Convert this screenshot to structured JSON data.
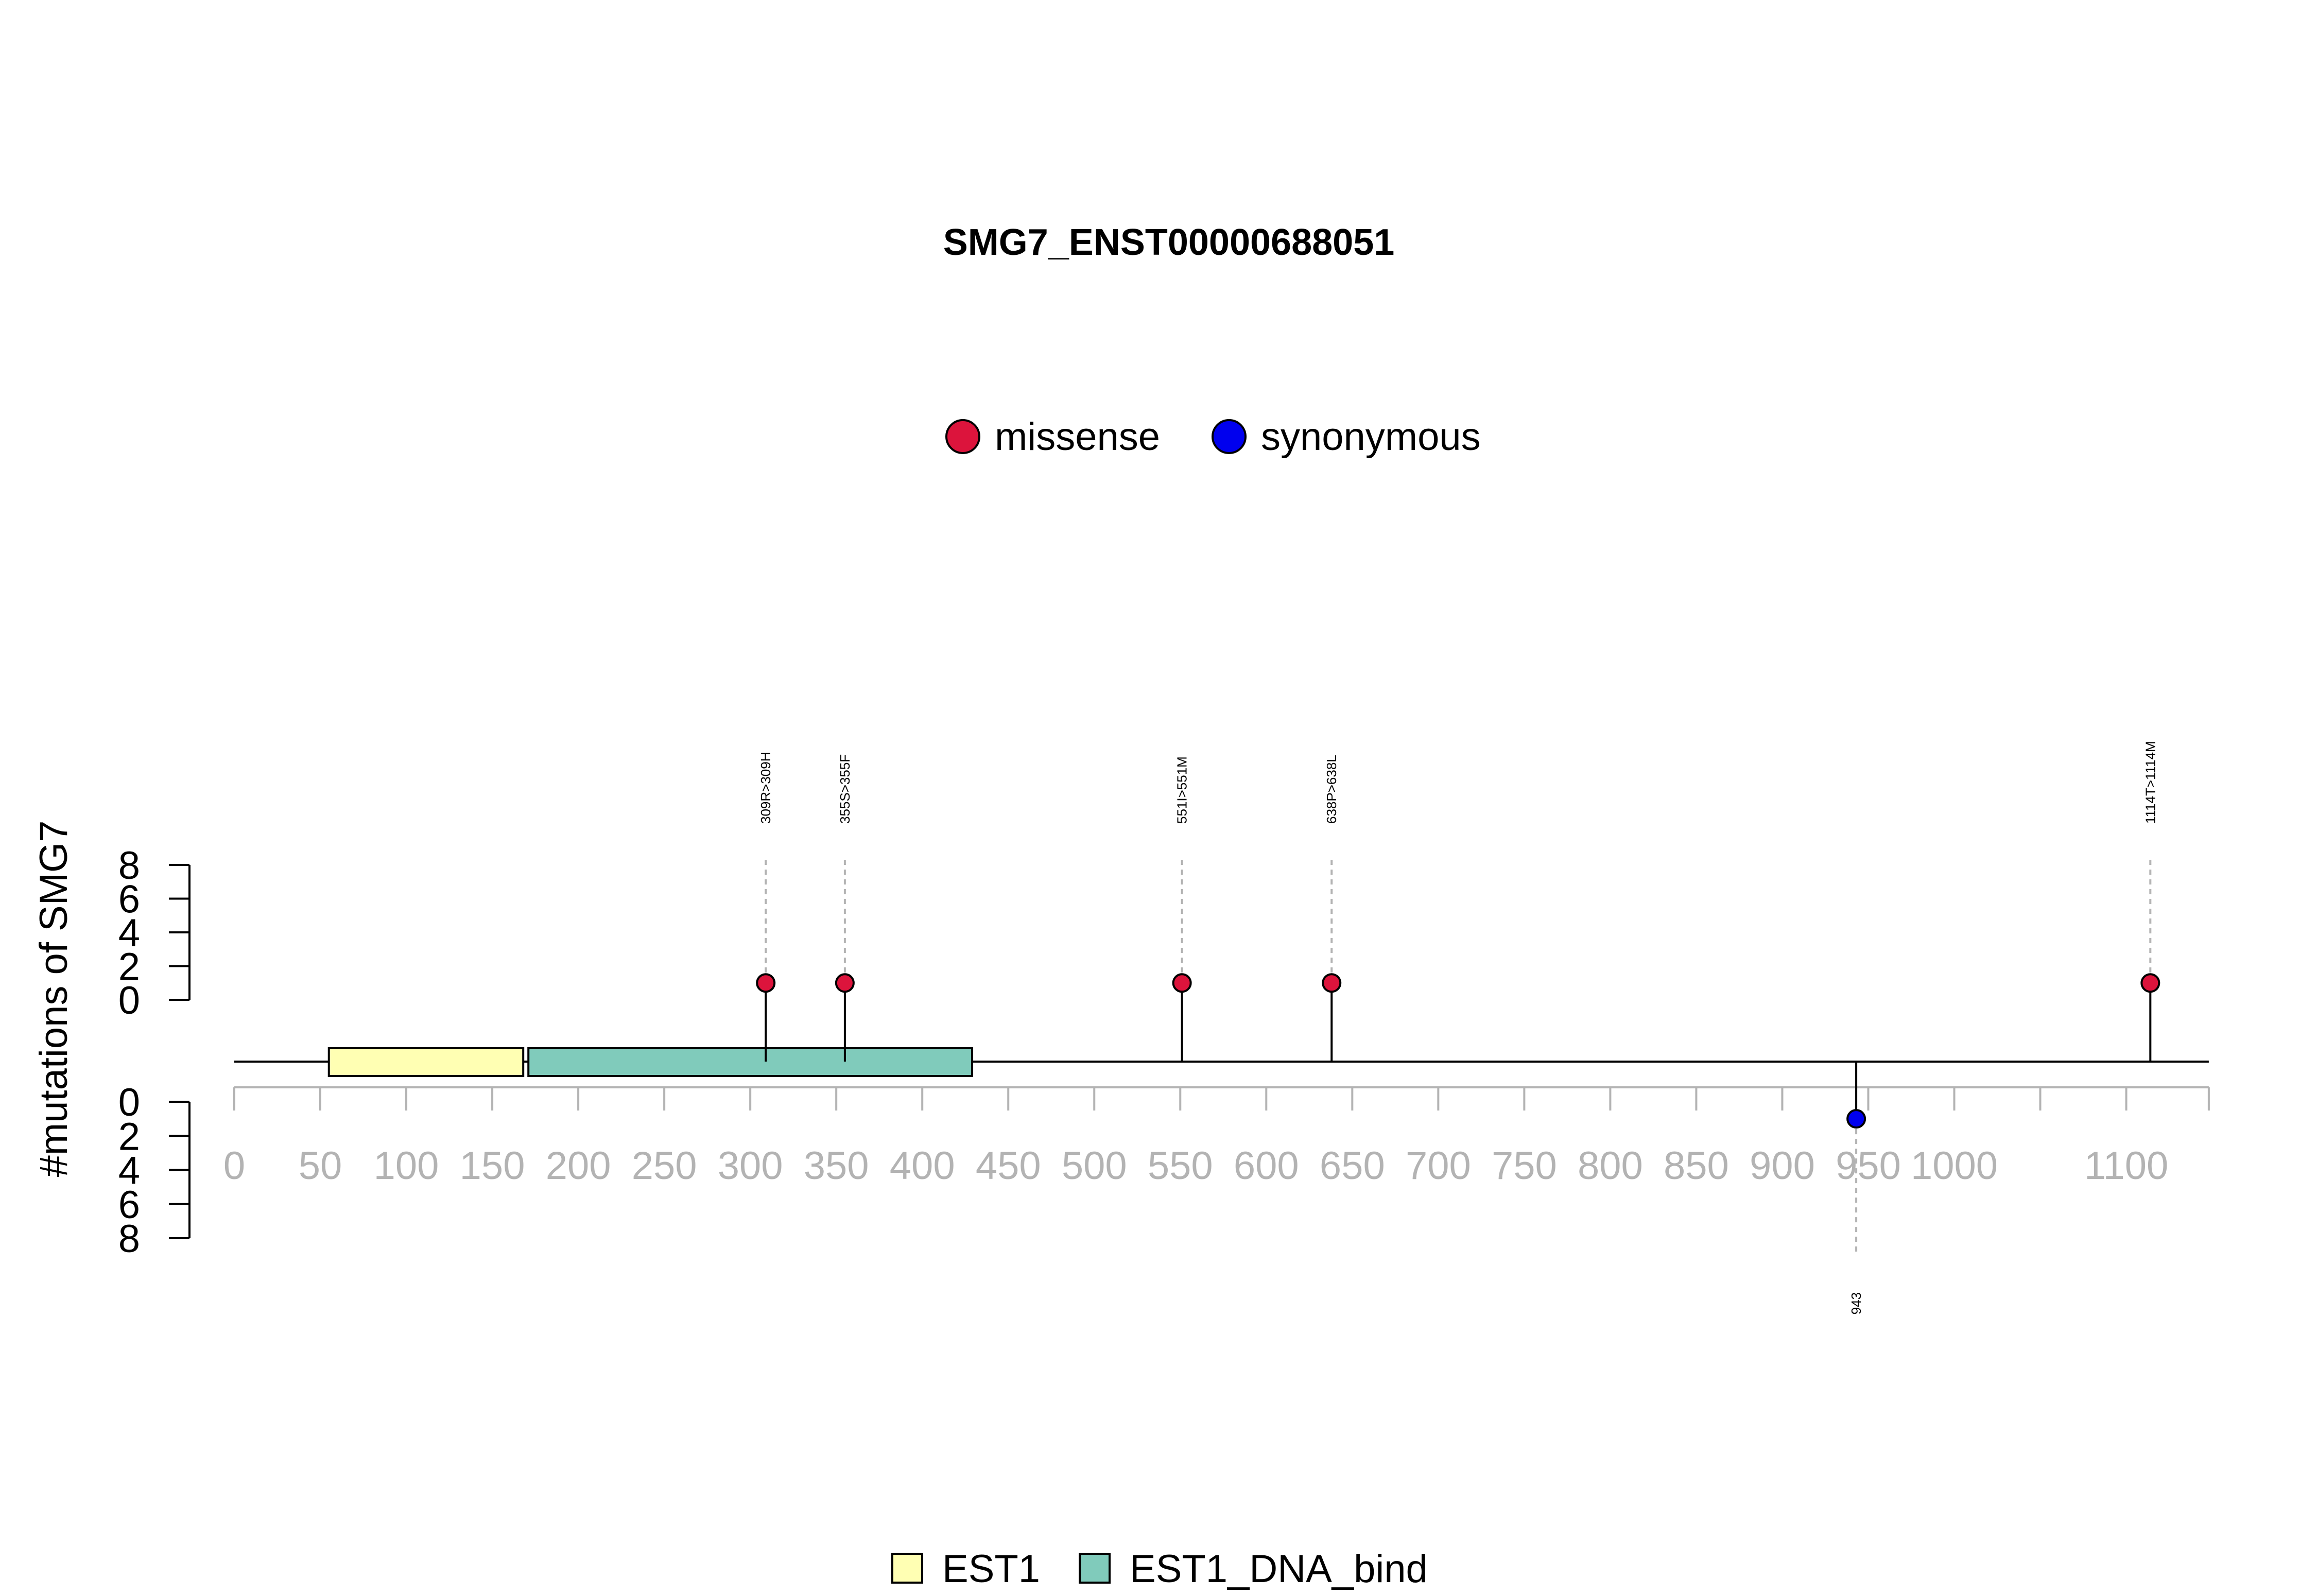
{
  "chart_data": {
    "type": "lollipop",
    "title": "SMG7_ENST00000688051",
    "ylabel": "#mutations of SMG7",
    "protein_length": 1145,
    "x_ticks": [
      0,
      50,
      100,
      150,
      200,
      250,
      300,
      350,
      400,
      450,
      500,
      550,
      600,
      650,
      700,
      750,
      800,
      850,
      900,
      950,
      1000,
      1100
    ],
    "x_tick_labels": [
      "0",
      "50",
      "100",
      "150",
      "200",
      "250",
      "300",
      "350",
      "400",
      "450",
      "500",
      "550",
      "600",
      "650",
      "700",
      "750",
      "800",
      "850",
      "900",
      "950",
      "1000",
      "1100"
    ],
    "x_minor_ticks": [
      1050
    ],
    "y_ticks": [
      0,
      2,
      4,
      6,
      8
    ],
    "y_tick_labels": [
      "0",
      "2",
      "4",
      "6",
      "8"
    ],
    "ylim": [
      0,
      8
    ],
    "mutation_legend": [
      {
        "label": "missense",
        "color": "#dc143c"
      },
      {
        "label": "synonymous",
        "color": "#0000ee"
      }
    ],
    "domains": [
      {
        "name": "EST1",
        "start": 55,
        "end": 168,
        "color": "#ffffb3"
      },
      {
        "name": "EST1_DNA_bind",
        "start": 171,
        "end": 429,
        "color": "#80cbbb"
      }
    ],
    "mutations": [
      {
        "position": 309,
        "label": "309R>309H",
        "type": "missense",
        "count": 1,
        "side": "top"
      },
      {
        "position": 355,
        "label": "355S>355F",
        "type": "missense",
        "count": 1,
        "side": "top"
      },
      {
        "position": 551,
        "label": "551I>551M",
        "type": "missense",
        "count": 1,
        "side": "top"
      },
      {
        "position": 638,
        "label": "638P>638L",
        "type": "missense",
        "count": 1,
        "side": "top"
      },
      {
        "position": 1114,
        "label": "1114T>1114M",
        "type": "missense",
        "count": 1,
        "side": "top"
      },
      {
        "position": 943,
        "label": "943",
        "type": "synonymous",
        "count": 1,
        "side": "bottom"
      }
    ]
  }
}
